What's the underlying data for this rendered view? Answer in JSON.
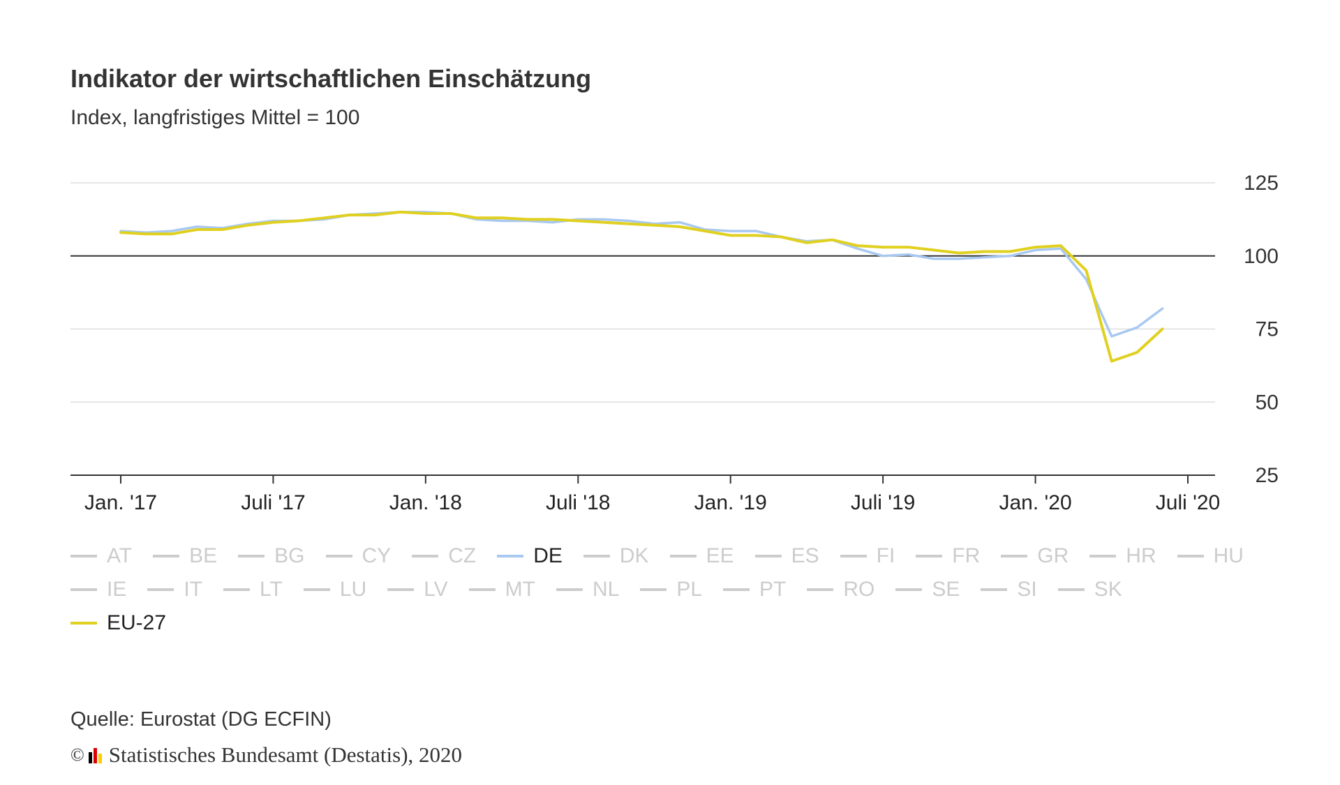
{
  "title": "Indikator der wirtschaftlichen Einschätzung",
  "subtitle": "Index, langfristiges Mittel = 100",
  "source": "Quelle: Eurostat (DG ECFIN)",
  "copyright": {
    "symbol": "©",
    "text": "Statistisches Bundesamt (Destatis), 2020",
    "logo_colors": [
      "#000000",
      "#dd0000",
      "#ffcc00"
    ]
  },
  "colors": {
    "DE": "#a8c8f0",
    "EU-27": "#e0d020",
    "inactive": "#cccccc",
    "grid": "#dddddd",
    "axis": "#333333"
  },
  "legend": {
    "rows": [
      [
        "AT",
        "BE",
        "BG",
        "CY",
        "CZ",
        "DE",
        "DK",
        "EE",
        "ES",
        "FI",
        "FR",
        "GR",
        "HR",
        "HU"
      ],
      [
        "IE",
        "IT",
        "LT",
        "LU",
        "LV",
        "MT",
        "NL",
        "PL",
        "PT",
        "RO",
        "SE",
        "SI",
        "SK"
      ],
      [
        "EU-27"
      ]
    ],
    "active": [
      "DE",
      "EU-27"
    ]
  },
  "chart_data": {
    "type": "line",
    "y_ticks": [
      "125",
      "100",
      "75",
      "50",
      "25"
    ],
    "ylim": [
      25,
      125
    ],
    "reference_line": 100,
    "x_ticks": [
      "Jan. '17",
      "Juli '17",
      "Jan. '18",
      "Juli '18",
      "Jan. '19",
      "Juli '19",
      "Jan. '20",
      "Juli '20"
    ],
    "x_start": "2017-01",
    "x_end": "2020-07",
    "x": [
      "2017-01",
      "2017-02",
      "2017-03",
      "2017-04",
      "2017-05",
      "2017-06",
      "2017-07",
      "2017-08",
      "2017-09",
      "2017-10",
      "2017-11",
      "2017-12",
      "2018-01",
      "2018-02",
      "2018-03",
      "2018-04",
      "2018-05",
      "2018-06",
      "2018-07",
      "2018-08",
      "2018-09",
      "2018-10",
      "2018-11",
      "2018-12",
      "2019-01",
      "2019-02",
      "2019-03",
      "2019-04",
      "2019-05",
      "2019-06",
      "2019-07",
      "2019-08",
      "2019-09",
      "2019-10",
      "2019-11",
      "2019-12",
      "2020-01",
      "2020-02",
      "2020-03",
      "2020-04",
      "2020-05",
      "2020-06"
    ],
    "series": [
      {
        "name": "DE",
        "values": [
          108.5,
          108.0,
          108.5,
          110.0,
          109.5,
          111.0,
          112.0,
          112.0,
          112.5,
          114.0,
          114.5,
          115.0,
          115.0,
          114.5,
          112.5,
          112.0,
          112.0,
          111.5,
          112.5,
          112.5,
          112.0,
          111.0,
          111.5,
          109.0,
          108.5,
          108.5,
          106.5,
          105.0,
          105.5,
          102.5,
          100.0,
          100.5,
          99.0,
          99.0,
          99.5,
          100.0,
          102.0,
          102.5,
          92.0,
          72.5,
          75.5,
          82.0
        ]
      },
      {
        "name": "EU-27",
        "values": [
          108.0,
          107.5,
          107.5,
          109.0,
          109.0,
          110.5,
          111.5,
          112.0,
          113.0,
          114.0,
          114.0,
          115.0,
          114.5,
          114.5,
          113.0,
          113.0,
          112.5,
          112.5,
          112.0,
          111.5,
          111.0,
          110.5,
          110.0,
          108.5,
          107.0,
          107.0,
          106.5,
          104.5,
          105.5,
          103.5,
          103.0,
          103.0,
          102.0,
          101.0,
          101.5,
          101.5,
          103.0,
          103.5,
          95.0,
          64.0,
          67.0,
          75.0
        ]
      }
    ]
  }
}
